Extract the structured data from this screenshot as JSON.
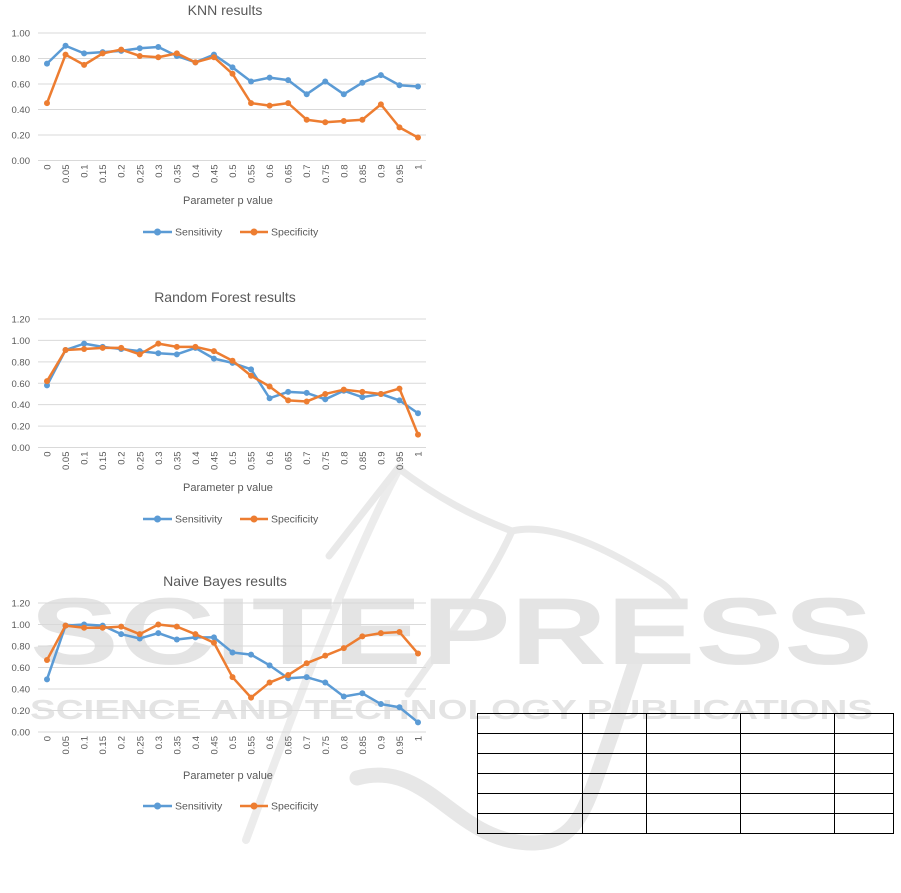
{
  "watermark": {
    "brand": "SCITEPRESS",
    "tagline": "SCIENCE AND TECHNOLOGY PUBLICATIONS",
    "text_color": "#e4e4e4",
    "swoosh_color": "#e9e9e9"
  },
  "colors": {
    "sensitivity": "#5B9BD5",
    "specificity": "#ED7D31",
    "grid": "#D9D9D9",
    "axis_text": "#595959",
    "title_text": "#595959"
  },
  "chart_data": [
    {
      "type": "line",
      "title": "KNN results",
      "xlabel": "Parameter p value",
      "grid": true,
      "legend_position": "bottom",
      "ylim": [
        0,
        1.0
      ],
      "ytick_labels": [
        "1.00",
        "0.80",
        "0.60",
        "0.40",
        "0.20",
        "0.00"
      ],
      "x_labels": [
        "0",
        "0.05",
        "0.1",
        "0.15",
        "0.2",
        "0.25",
        "0.3",
        "0.35",
        "0.4",
        "0.45",
        "0.5",
        "0.55",
        "0.6",
        "0.65",
        "0.7",
        "0.75",
        "0.8",
        "0.85",
        "0.9",
        "0.95",
        "1"
      ],
      "series": [
        {
          "name": "Sensitivity",
          "color": "#5B9BD5",
          "values": [
            0.76,
            0.9,
            0.84,
            0.85,
            0.86,
            0.88,
            0.89,
            0.82,
            0.77,
            0.83,
            0.73,
            0.62,
            0.65,
            0.63,
            0.52,
            0.62,
            0.52,
            0.61,
            0.67,
            0.59,
            0.58
          ]
        },
        {
          "name": "Specificity",
          "color": "#ED7D31",
          "values": [
            0.45,
            0.83,
            0.75,
            0.84,
            0.87,
            0.82,
            0.81,
            0.84,
            0.77,
            0.81,
            0.68,
            0.45,
            0.43,
            0.45,
            0.32,
            0.3,
            0.31,
            0.32,
            0.44,
            0.26,
            0.18
          ]
        }
      ]
    },
    {
      "type": "line",
      "title": "Random Forest results",
      "xlabel": "Parameter p value",
      "grid": true,
      "legend_position": "bottom",
      "ylim": [
        0,
        1.2
      ],
      "ytick_labels": [
        "1.20",
        "1.00",
        "0.80",
        "0.60",
        "0.40",
        "0.20",
        "0.00"
      ],
      "x_labels": [
        "0",
        "0.05",
        "0.1",
        "0.15",
        "0.2",
        "0.25",
        "0.3",
        "0.35",
        "0.4",
        "0.45",
        "0.5",
        "0.55",
        "0.6",
        "0.65",
        "0.7",
        "0.75",
        "0.8",
        "0.85",
        "0.9",
        "0.95",
        "1"
      ],
      "series": [
        {
          "name": "Sensitivity",
          "color": "#5B9BD5",
          "values": [
            0.58,
            0.91,
            0.97,
            0.94,
            0.92,
            0.9,
            0.88,
            0.87,
            0.93,
            0.83,
            0.79,
            0.73,
            0.46,
            0.52,
            0.51,
            0.45,
            0.53,
            0.47,
            0.5,
            0.44,
            0.32
          ]
        },
        {
          "name": "Specificity",
          "color": "#ED7D31",
          "values": [
            0.62,
            0.91,
            0.92,
            0.93,
            0.93,
            0.87,
            0.97,
            0.94,
            0.94,
            0.9,
            0.81,
            0.67,
            0.57,
            0.44,
            0.43,
            0.5,
            0.54,
            0.52,
            0.5,
            0.55,
            0.12
          ]
        }
      ]
    },
    {
      "type": "line",
      "title": "Naive Bayes results",
      "xlabel": "Parameter p value",
      "grid": true,
      "legend_position": "bottom",
      "ylim": [
        0,
        1.2
      ],
      "ytick_labels": [
        "1.20",
        "1.00",
        "0.80",
        "0.60",
        "0.40",
        "0.20",
        "0.00"
      ],
      "x_labels": [
        "0",
        "0.05",
        "0.1",
        "0.15",
        "0.2",
        "0.25",
        "0.3",
        "0.35",
        "0.4",
        "0.45",
        "0.5",
        "0.55",
        "0.6",
        "0.65",
        "0.7",
        "0.75",
        "0.8",
        "0.85",
        "0.9",
        "0.95",
        "1"
      ],
      "series": [
        {
          "name": "Sensitivity",
          "color": "#5B9BD5",
          "values": [
            0.49,
            0.99,
            1.0,
            0.99,
            0.91,
            0.87,
            0.92,
            0.86,
            0.88,
            0.88,
            0.74,
            0.72,
            0.62,
            0.5,
            0.51,
            0.46,
            0.33,
            0.36,
            0.26,
            0.23,
            0.09
          ]
        },
        {
          "name": "Specificity",
          "color": "#ED7D31",
          "values": [
            0.67,
            0.99,
            0.97,
            0.97,
            0.98,
            0.91,
            1.0,
            0.98,
            0.91,
            0.83,
            0.51,
            0.32,
            0.46,
            0.53,
            0.64,
            0.71,
            0.78,
            0.89,
            0.92,
            0.93,
            0.73
          ]
        }
      ]
    }
  ],
  "table": {
    "rows": 6,
    "columns": 5,
    "cells": [
      [
        "",
        "",
        "",
        "",
        ""
      ],
      [
        "",
        "",
        "",
        "",
        ""
      ],
      [
        "",
        "",
        "",
        "",
        ""
      ],
      [
        "",
        "",
        "",
        "",
        ""
      ],
      [
        "",
        "",
        "",
        "",
        ""
      ],
      [
        "",
        "",
        "",
        "",
        ""
      ]
    ]
  }
}
